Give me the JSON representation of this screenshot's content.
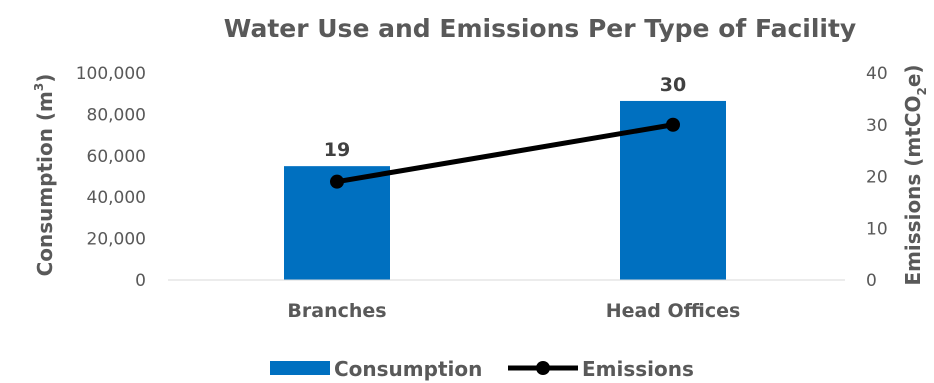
{
  "chart_data": {
    "type": "bar+line",
    "title": "Water Use and Emissions Per Type of Facility",
    "categories": [
      "Branches",
      "Head Offices"
    ],
    "series": [
      {
        "name": "Consumption",
        "type": "bar",
        "axis": "left",
        "values": [
          55000,
          86500
        ],
        "color": "#0070C0"
      },
      {
        "name": "Emissions",
        "type": "line",
        "axis": "right",
        "values": [
          19,
          30
        ],
        "color": "#000000"
      }
    ],
    "data_labels": [
      "19",
      "30"
    ],
    "ylabel_left": {
      "main": "Consumption (m",
      "sup": "3",
      "end": ")"
    },
    "ylabel_right": {
      "main": "Emissions (mtCO",
      "sub": "2",
      "end": "e)"
    },
    "ylim_left": [
      0,
      100000
    ],
    "ylim_right": [
      0,
      40
    ],
    "yticks_left": [
      "0",
      "20,000",
      "40,000",
      "60,000",
      "80,000",
      "100,000"
    ],
    "yticks_right": [
      "0",
      "10",
      "20",
      "30",
      "40"
    ],
    "grid": false,
    "legend_position": "bottom"
  }
}
